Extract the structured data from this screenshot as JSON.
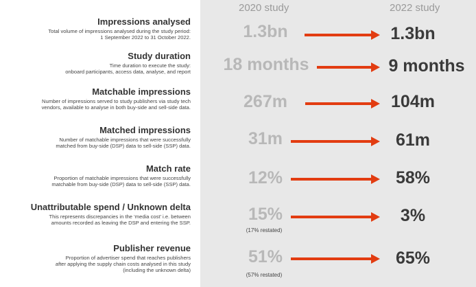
{
  "headers": {
    "col_2020": "2020 study",
    "col_2022": "2022 study"
  },
  "colors": {
    "accent_arrow": "#e23c11",
    "value_2020": "#b8b8b8",
    "value_2022": "#3a3a3a",
    "panel_bg": "#e8e8e8"
  },
  "rows": [
    {
      "title": "Impressions analysed",
      "desc": [
        "Total volume of impressions analysed during the study period:",
        "1 September 2022 to 31 October 2022."
      ],
      "v2020": "1.3bn",
      "v2022": "1.3bn",
      "note": ""
    },
    {
      "title": "Study duration",
      "desc": [
        "Time duration to execute the study:",
        "onboard participants, access data, analyse, and report"
      ],
      "v2020": "18 months",
      "v2022": "9 months",
      "note": ""
    },
    {
      "title": "Matchable impressions",
      "desc": [
        "Number of impressions served to study publishers via study tech",
        "vendors, available to analyse in both buy-side and sell-side data."
      ],
      "v2020": "267m",
      "v2022": "104m",
      "note": ""
    },
    {
      "title": "Matched impressions",
      "desc": [
        "Number of matchable impressions that were successfully",
        "matched from buy-side (DSP) data to sell-side (SSP) data."
      ],
      "v2020": "31m",
      "v2022": "61m",
      "note": ""
    },
    {
      "title": "Match rate",
      "desc": [
        "Proportion of matchable impressions that were successfully",
        "matchable from buy-side (DSP) data to sell-side (SSP) data."
      ],
      "v2020": "12%",
      "v2022": "58%",
      "note": ""
    },
    {
      "title": "Unattributable spend / Unknown delta",
      "desc": [
        "This represents discrepancies in the ‘media cost’ i.e. between",
        "amounts recorded as leaving the DSP and entering the SSP."
      ],
      "v2020": "15%",
      "v2022": "3%",
      "note": "(17% restated)"
    },
    {
      "title": "Publisher revenue",
      "desc": [
        "Proportion of advertiser spend that reaches publishers",
        "after applying the supply chain costs analysed in this study",
        "(including the unknown delta)"
      ],
      "v2020": "51%",
      "v2022": "65%",
      "note": "(57% restated)"
    }
  ]
}
